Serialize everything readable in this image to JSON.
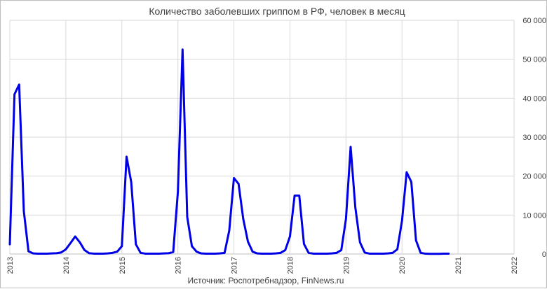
{
  "chart_data": {
    "type": "line",
    "title": "Количество заболевших гриппом в РФ, человек в месяц",
    "source": "Источник: Роспотребнадзор, FinNews.ru",
    "x_tick_labels": [
      "2013",
      "2014",
      "2015",
      "2016",
      "2017",
      "2018",
      "2019",
      "2020",
      "2021",
      "2022"
    ],
    "y_tick_labels": [
      "0",
      "10 000",
      "20 000",
      "30 000",
      "40 000",
      "50 000",
      "60 000"
    ],
    "xlim": [
      "2013-01",
      "2022-01"
    ],
    "ylim": [
      0,
      60000
    ],
    "y_axis_side": "right",
    "grid": {
      "vertical": true,
      "horizontal": true
    },
    "legend": "none",
    "series": [
      {
        "color": "#0000e6",
        "points": [
          {
            "x": "2013-01",
            "y": 2500
          },
          {
            "x": "2013-02",
            "y": 41000
          },
          {
            "x": "2013-03",
            "y": 43500
          },
          {
            "x": "2013-04",
            "y": 11000
          },
          {
            "x": "2013-05",
            "y": 700
          },
          {
            "x": "2013-06",
            "y": 150
          },
          {
            "x": "2013-07",
            "y": 100
          },
          {
            "x": "2013-08",
            "y": 80
          },
          {
            "x": "2013-09",
            "y": 100
          },
          {
            "x": "2013-10",
            "y": 150
          },
          {
            "x": "2013-11",
            "y": 200
          },
          {
            "x": "2013-12",
            "y": 400
          },
          {
            "x": "2014-01",
            "y": 1200
          },
          {
            "x": "2014-02",
            "y": 2800
          },
          {
            "x": "2014-03",
            "y": 4500
          },
          {
            "x": "2014-04",
            "y": 3000
          },
          {
            "x": "2014-05",
            "y": 1000
          },
          {
            "x": "2014-06",
            "y": 200
          },
          {
            "x": "2014-07",
            "y": 100
          },
          {
            "x": "2014-08",
            "y": 80
          },
          {
            "x": "2014-09",
            "y": 100
          },
          {
            "x": "2014-10",
            "y": 150
          },
          {
            "x": "2014-11",
            "y": 300
          },
          {
            "x": "2014-12",
            "y": 600
          },
          {
            "x": "2015-01",
            "y": 2000
          },
          {
            "x": "2015-02",
            "y": 25000
          },
          {
            "x": "2015-03",
            "y": 18500
          },
          {
            "x": "2015-04",
            "y": 2500
          },
          {
            "x": "2015-05",
            "y": 300
          },
          {
            "x": "2015-06",
            "y": 100
          },
          {
            "x": "2015-07",
            "y": 80
          },
          {
            "x": "2015-08",
            "y": 80
          },
          {
            "x": "2015-09",
            "y": 100
          },
          {
            "x": "2015-10",
            "y": 150
          },
          {
            "x": "2015-11",
            "y": 200
          },
          {
            "x": "2015-12",
            "y": 500
          },
          {
            "x": "2016-01",
            "y": 16000
          },
          {
            "x": "2016-02",
            "y": 52500
          },
          {
            "x": "2016-03",
            "y": 9500
          },
          {
            "x": "2016-04",
            "y": 2000
          },
          {
            "x": "2016-05",
            "y": 600
          },
          {
            "x": "2016-06",
            "y": 150
          },
          {
            "x": "2016-07",
            "y": 100
          },
          {
            "x": "2016-08",
            "y": 80
          },
          {
            "x": "2016-09",
            "y": 100
          },
          {
            "x": "2016-10",
            "y": 150
          },
          {
            "x": "2016-11",
            "y": 300
          },
          {
            "x": "2016-12",
            "y": 6000
          },
          {
            "x": "2017-01",
            "y": 19500
          },
          {
            "x": "2017-02",
            "y": 18000
          },
          {
            "x": "2017-03",
            "y": 9000
          },
          {
            "x": "2017-04",
            "y": 3200
          },
          {
            "x": "2017-05",
            "y": 600
          },
          {
            "x": "2017-06",
            "y": 150
          },
          {
            "x": "2017-07",
            "y": 80
          },
          {
            "x": "2017-08",
            "y": 80
          },
          {
            "x": "2017-09",
            "y": 100
          },
          {
            "x": "2017-10",
            "y": 150
          },
          {
            "x": "2017-11",
            "y": 300
          },
          {
            "x": "2017-12",
            "y": 1000
          },
          {
            "x": "2018-01",
            "y": 4500
          },
          {
            "x": "2018-02",
            "y": 15000
          },
          {
            "x": "2018-03",
            "y": 15000
          },
          {
            "x": "2018-04",
            "y": 2600
          },
          {
            "x": "2018-05",
            "y": 300
          },
          {
            "x": "2018-06",
            "y": 100
          },
          {
            "x": "2018-07",
            "y": 80
          },
          {
            "x": "2018-08",
            "y": 80
          },
          {
            "x": "2018-09",
            "y": 100
          },
          {
            "x": "2018-10",
            "y": 150
          },
          {
            "x": "2018-11",
            "y": 300
          },
          {
            "x": "2018-12",
            "y": 1000
          },
          {
            "x": "2019-01",
            "y": 9000
          },
          {
            "x": "2019-02",
            "y": 27500
          },
          {
            "x": "2019-03",
            "y": 12000
          },
          {
            "x": "2019-04",
            "y": 3000
          },
          {
            "x": "2019-05",
            "y": 400
          },
          {
            "x": "2019-06",
            "y": 100
          },
          {
            "x": "2019-07",
            "y": 80
          },
          {
            "x": "2019-08",
            "y": 80
          },
          {
            "x": "2019-09",
            "y": 100
          },
          {
            "x": "2019-10",
            "y": 150
          },
          {
            "x": "2019-11",
            "y": 300
          },
          {
            "x": "2019-12",
            "y": 1200
          },
          {
            "x": "2020-01",
            "y": 8500
          },
          {
            "x": "2020-02",
            "y": 21000
          },
          {
            "x": "2020-03",
            "y": 18500
          },
          {
            "x": "2020-04",
            "y": 3500
          },
          {
            "x": "2020-05",
            "y": 300
          },
          {
            "x": "2020-06",
            "y": 80
          },
          {
            "x": "2020-07",
            "y": 50
          },
          {
            "x": "2020-08",
            "y": 50
          },
          {
            "x": "2020-09",
            "y": 50
          },
          {
            "x": "2020-10",
            "y": 80
          },
          {
            "x": "2020-11",
            "y": 100
          }
        ]
      }
    ]
  }
}
